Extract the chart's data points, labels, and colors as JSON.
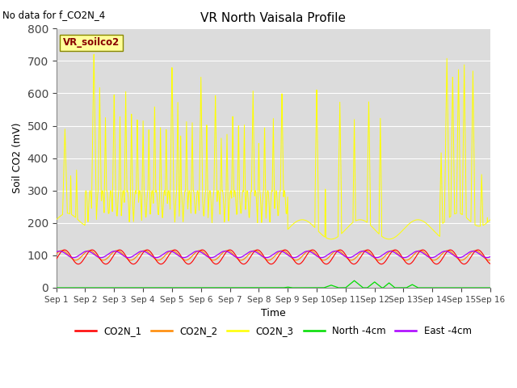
{
  "title": "VR North Vaisala Profile",
  "subtitle": "No data for f_CO2N_4",
  "ylabel": "Soil CO2 (mV)",
  "xlabel": "Time",
  "ylim": [
    0,
    800
  ],
  "yticks": [
    0,
    100,
    200,
    300,
    400,
    500,
    600,
    700,
    800
  ],
  "xtick_labels": [
    "Sep 1",
    "Sep 2",
    "Sep 3",
    "Sep 4",
    "Sep 5",
    "Sep 6",
    "Sep 7",
    "Sep 8",
    "Sep 9",
    "Sep 10",
    "Sep 11",
    "Sep 12",
    "Sep 13",
    "Sep 14",
    "Sep 15",
    "Sep 16"
  ],
  "bg_color": "#dcdcdc",
  "fig_bg": "#ffffff",
  "colors": {
    "CO2N_1": "#ff0000",
    "CO2N_2": "#ff8800",
    "CO2N_3": "#ffff00",
    "North_4cm": "#00dd00",
    "East_4cm": "#aa00ff"
  },
  "vr_soilco2_box_color": "#ffff99",
  "vr_soilco2_text_color": "#880000",
  "vr_soilco2_edge_color": "#888800"
}
